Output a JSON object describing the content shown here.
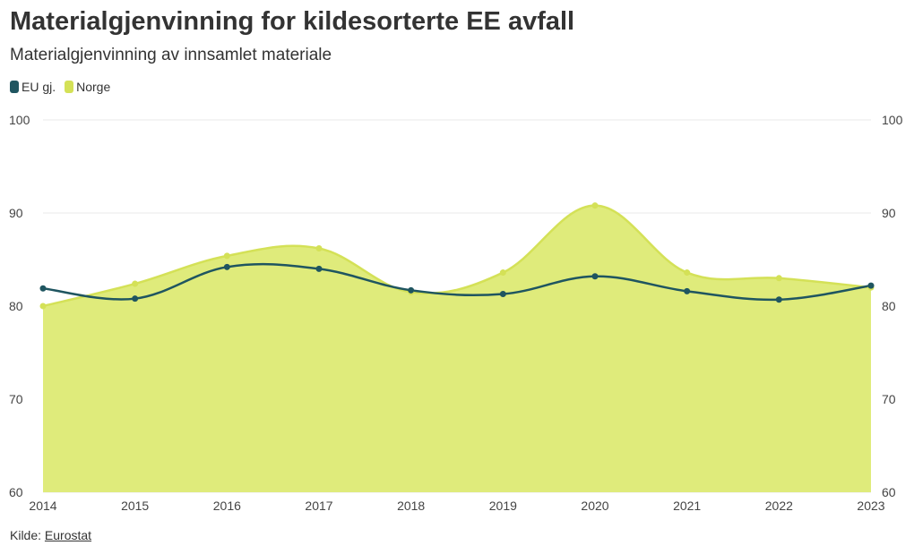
{
  "title": "Materialgjenvinning for kildesorterte EE avfall",
  "subtitle": "Materialgjenvinning av innsamlet materiale",
  "source": {
    "label": "Kilde: ",
    "link_text": "Eurostat"
  },
  "colors": {
    "eu": "#1f5560",
    "norge": "#d4e157",
    "norge_fill": "#dfeb7b",
    "grid": "#e8e8e8"
  },
  "chart_data": {
    "type": "area",
    "title": "Materialgjenvinning for kildesorterte EE avfall",
    "subtitle": "Materialgjenvinning av innsamlet materiale",
    "xlabel": "",
    "ylabel": "",
    "categories": [
      "2014",
      "2015",
      "2016",
      "2017",
      "2018",
      "2019",
      "2020",
      "2021",
      "2022",
      "2023"
    ],
    "ylim": [
      60,
      100
    ],
    "yticks": [
      60,
      70,
      80,
      90,
      100
    ],
    "grid": true,
    "legend_position": "top-left",
    "series": [
      {
        "name": "EU gj.",
        "style": "line",
        "values": [
          81.9,
          80.8,
          84.2,
          84.0,
          81.7,
          81.3,
          83.2,
          81.6,
          80.7,
          82.2
        ]
      },
      {
        "name": "Norge",
        "style": "area",
        "values": [
          80.0,
          82.4,
          85.4,
          86.2,
          81.5,
          83.6,
          90.8,
          83.6,
          83.0,
          82.0
        ]
      }
    ]
  }
}
